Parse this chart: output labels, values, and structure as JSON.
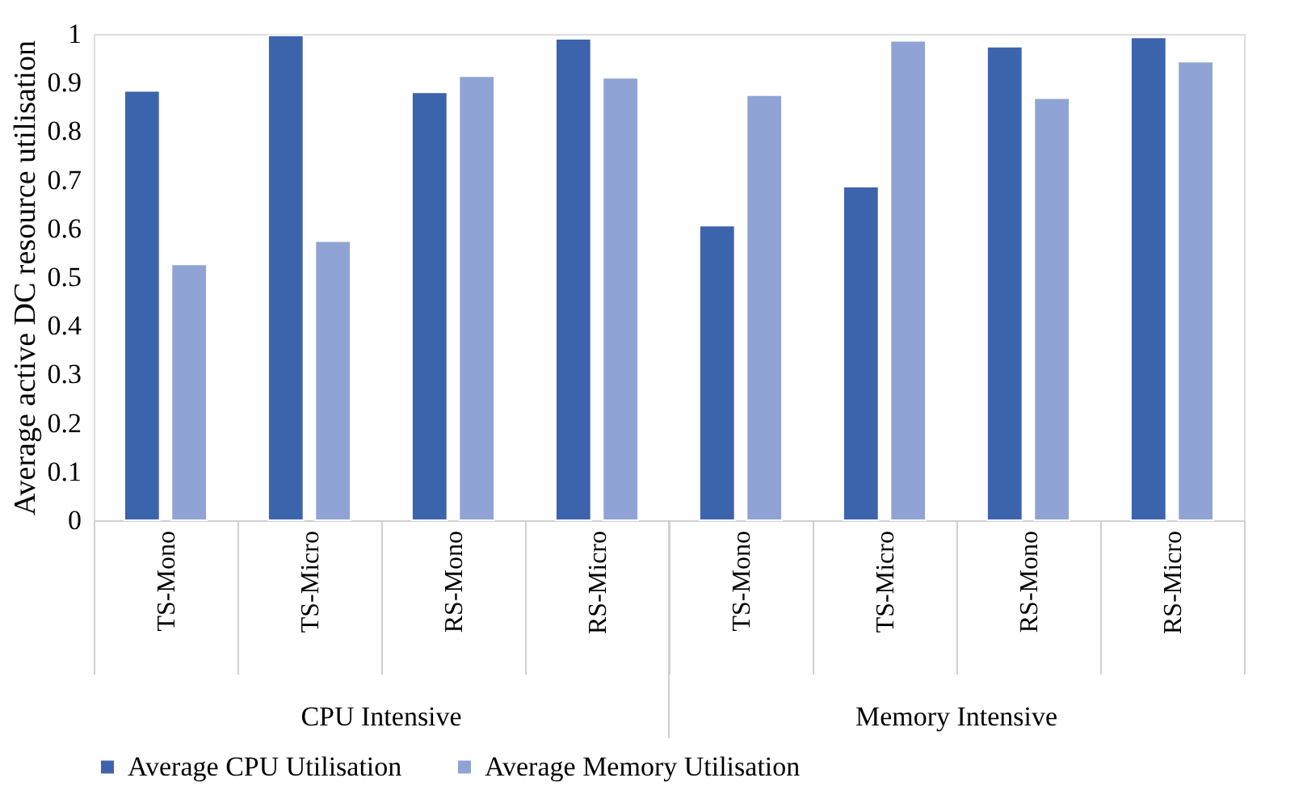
{
  "chart_data": {
    "type": "bar",
    "ylabel": "Average  active DC resource utilisation",
    "categories": [
      "TS-Mono",
      "TS-Micro",
      "RS-Mono",
      "RS-Micro",
      "TS-Mono",
      "TS-Micro",
      "RS-Mono",
      "RS-Micro"
    ],
    "annotations": [
      "CPU Intensive",
      "Memory Intensive"
    ],
    "series": [
      {
        "name": "Average CPU Utilisation",
        "color": "#3c64ad",
        "values": [
          0.883,
          0.997,
          0.88,
          0.99,
          0.606,
          0.686,
          0.974,
          0.993
        ]
      },
      {
        "name": "Average  Memory Utilisation",
        "color": "#8fa4d4",
        "values": [
          0.526,
          0.574,
          0.913,
          0.91,
          0.874,
          0.986,
          0.868,
          0.943
        ]
      }
    ],
    "ylim": [
      0,
      1
    ],
    "yticks": [
      0,
      0.1,
      0.2,
      0.3,
      0.4,
      0.5,
      0.6,
      0.7,
      0.8,
      0.9,
      1
    ],
    "grid": false,
    "legend": "bottom"
  }
}
